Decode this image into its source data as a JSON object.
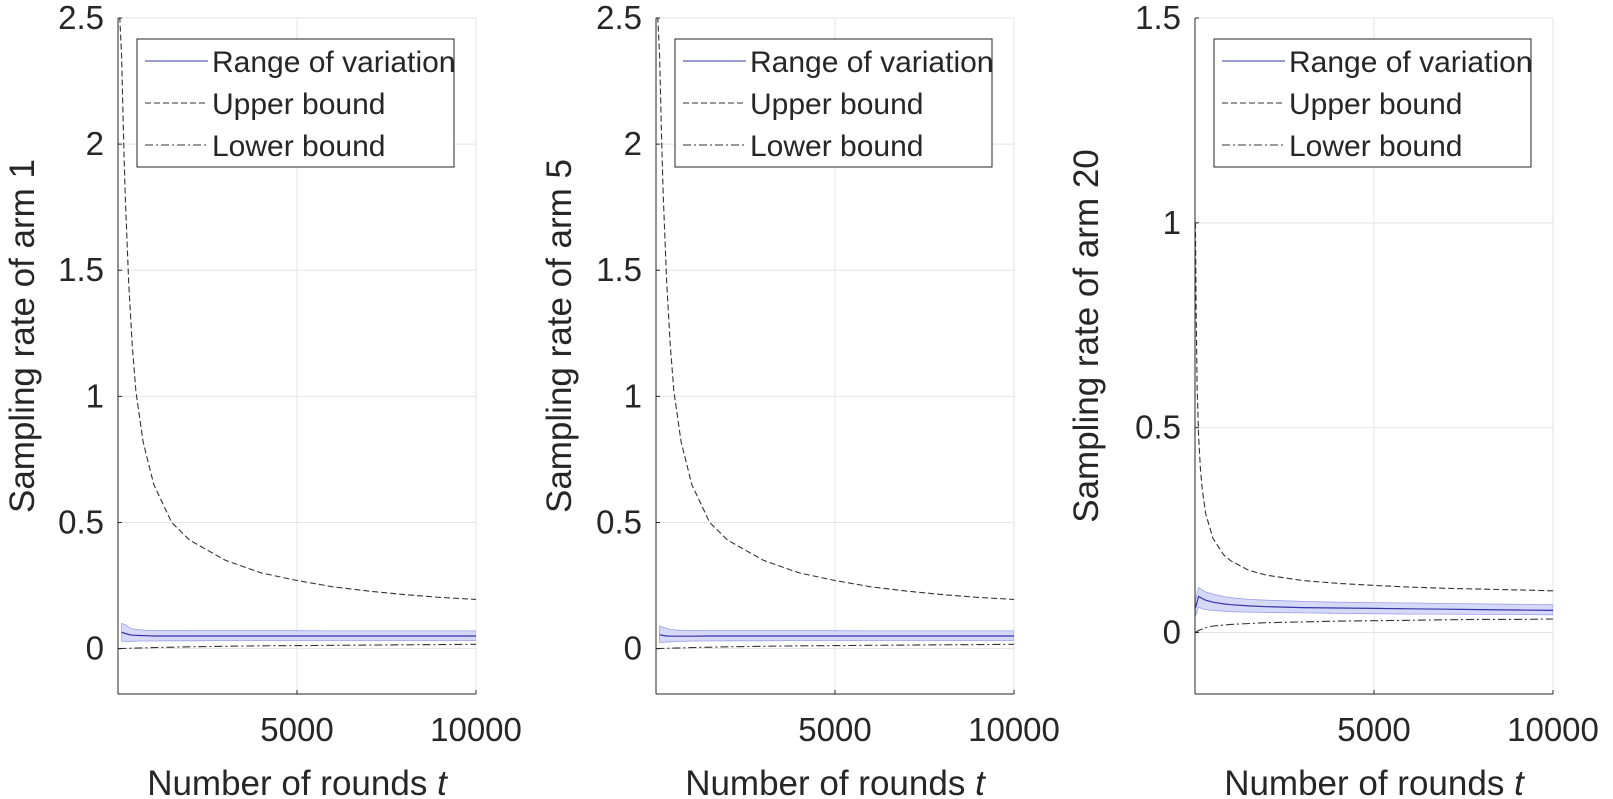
{
  "chart_data": [
    {
      "type": "line",
      "xlabel": "Number of rounds",
      "xlabel_var": "t",
      "ylabel": "Sampling rate of arm 1",
      "xlim": [
        0,
        10000
      ],
      "ylim": [
        -0.18,
        2.5
      ],
      "xticks": [
        5000,
        10000
      ],
      "yticks": [
        0,
        0.5,
        1,
        1.5,
        2,
        2.5
      ],
      "grid": true,
      "legend_position": "top-right",
      "series": [
        {
          "name": "Range of variation",
          "style": "solid",
          "color": "#3333aa",
          "fill": "#d6d8f7",
          "x": [
            100,
            200,
            300,
            400,
            600,
            800,
            1000,
            1500,
            2000,
            3000,
            4000,
            5000,
            6000,
            7000,
            8000,
            9000,
            10000
          ],
          "center": [
            0.065,
            0.06,
            0.056,
            0.053,
            0.052,
            0.051,
            0.05,
            0.05,
            0.05,
            0.05,
            0.05,
            0.05,
            0.05,
            0.05,
            0.05,
            0.05,
            0.05
          ],
          "upper": [
            0.1,
            0.095,
            0.085,
            0.078,
            0.075,
            0.072,
            0.072,
            0.072,
            0.071,
            0.071,
            0.071,
            0.071,
            0.07,
            0.07,
            0.07,
            0.07,
            0.07
          ],
          "lower": [
            0.03,
            0.028,
            0.028,
            0.029,
            0.03,
            0.03,
            0.03,
            0.031,
            0.031,
            0.032,
            0.032,
            0.032,
            0.032,
            0.032,
            0.032,
            0.032,
            0.032
          ]
        },
        {
          "name": "Upper bound",
          "style": "dashed",
          "color": "#333333",
          "x": [
            10,
            50,
            100,
            150,
            200,
            300,
            400,
            500,
            700,
            1000,
            1500,
            2000,
            3000,
            4000,
            5000,
            6000,
            7000,
            8000,
            9000,
            10000
          ],
          "values": [
            2.5,
            2.5,
            2.35,
            2.05,
            1.8,
            1.45,
            1.2,
            1.02,
            0.82,
            0.65,
            0.5,
            0.43,
            0.35,
            0.3,
            0.27,
            0.245,
            0.228,
            0.214,
            0.203,
            0.195
          ]
        },
        {
          "name": "Lower bound",
          "style": "dashdot",
          "color": "#333333",
          "x": [
            10,
            500,
            1000,
            2000,
            3000,
            4000,
            5000,
            6000,
            7000,
            8000,
            9000,
            10000
          ],
          "values": [
            0.0,
            0.002,
            0.004,
            0.007,
            0.009,
            0.011,
            0.012,
            0.013,
            0.014,
            0.015,
            0.016,
            0.017
          ]
        }
      ]
    },
    {
      "type": "line",
      "xlabel": "Number of rounds",
      "xlabel_var": "t",
      "ylabel": "Sampling rate of arm 5",
      "xlim": [
        0,
        10000
      ],
      "ylim": [
        -0.18,
        2.5
      ],
      "xticks": [
        5000,
        10000
      ],
      "yticks": [
        0,
        0.5,
        1,
        1.5,
        2,
        2.5
      ],
      "grid": true,
      "legend_position": "top-right",
      "series": [
        {
          "name": "Range of variation",
          "style": "solid",
          "color": "#3333aa",
          "fill": "#d6d8f7",
          "x": [
            100,
            200,
            300,
            400,
            600,
            800,
            1000,
            1500,
            2000,
            3000,
            4000,
            5000,
            6000,
            7000,
            8000,
            9000,
            10000
          ],
          "center": [
            0.055,
            0.052,
            0.05,
            0.049,
            0.049,
            0.049,
            0.049,
            0.05,
            0.05,
            0.05,
            0.05,
            0.05,
            0.05,
            0.05,
            0.05,
            0.05,
            0.05
          ],
          "upper": [
            0.09,
            0.085,
            0.08,
            0.076,
            0.073,
            0.072,
            0.072,
            0.071,
            0.071,
            0.071,
            0.071,
            0.071,
            0.07,
            0.07,
            0.07,
            0.07,
            0.07
          ],
          "lower": [
            0.025,
            0.025,
            0.026,
            0.027,
            0.028,
            0.029,
            0.03,
            0.03,
            0.031,
            0.031,
            0.032,
            0.032,
            0.032,
            0.032,
            0.032,
            0.032,
            0.032
          ]
        },
        {
          "name": "Upper bound",
          "style": "dashed",
          "color": "#333333",
          "x": [
            10,
            50,
            100,
            150,
            200,
            300,
            400,
            500,
            700,
            1000,
            1500,
            2000,
            3000,
            4000,
            5000,
            6000,
            7000,
            8000,
            9000,
            10000
          ],
          "values": [
            2.5,
            2.5,
            2.35,
            2.05,
            1.8,
            1.45,
            1.2,
            1.02,
            0.82,
            0.65,
            0.5,
            0.43,
            0.35,
            0.3,
            0.27,
            0.245,
            0.228,
            0.214,
            0.203,
            0.195
          ]
        },
        {
          "name": "Lower bound",
          "style": "dashdot",
          "color": "#333333",
          "x": [
            10,
            500,
            1000,
            2000,
            3000,
            4000,
            5000,
            6000,
            7000,
            8000,
            9000,
            10000
          ],
          "values": [
            0.0,
            0.002,
            0.004,
            0.007,
            0.009,
            0.011,
            0.012,
            0.013,
            0.014,
            0.015,
            0.016,
            0.017
          ]
        }
      ]
    },
    {
      "type": "line",
      "xlabel": "Number of rounds",
      "xlabel_var": "t",
      "ylabel": "Sampling rate of arm 20",
      "xlim": [
        0,
        10000
      ],
      "ylim": [
        -0.15,
        1.5
      ],
      "xticks": [
        5000,
        10000
      ],
      "yticks": [
        0,
        0.5,
        1,
        1.5
      ],
      "grid": true,
      "legend_position": "top-right",
      "series": [
        {
          "name": "Range of variation",
          "style": "solid",
          "color": "#3333aa",
          "fill": "#d6d8f7",
          "x": [
            10,
            100,
            200,
            300,
            500,
            800,
            1000,
            1500,
            2000,
            3000,
            4000,
            5000,
            6000,
            7000,
            8000,
            9000,
            10000
          ],
          "center": [
            0.06,
            0.088,
            0.083,
            0.079,
            0.074,
            0.07,
            0.068,
            0.065,
            0.063,
            0.061,
            0.06,
            0.059,
            0.058,
            0.057,
            0.056,
            0.055,
            0.054
          ],
          "upper": [
            0.08,
            0.11,
            0.104,
            0.099,
            0.094,
            0.088,
            0.085,
            0.081,
            0.079,
            0.076,
            0.074,
            0.073,
            0.072,
            0.071,
            0.07,
            0.069,
            0.068
          ],
          "lower": [
            0.04,
            0.062,
            0.058,
            0.056,
            0.054,
            0.052,
            0.051,
            0.05,
            0.049,
            0.048,
            0.047,
            0.046,
            0.045,
            0.045,
            0.044,
            0.044,
            0.043
          ]
        },
        {
          "name": "Upper bound",
          "style": "dashed",
          "color": "#333333",
          "x": [
            10,
            30,
            60,
            100,
            150,
            200,
            300,
            500,
            800,
            1000,
            1500,
            2000,
            3000,
            4000,
            5000,
            6000,
            7000,
            8000,
            9000,
            10000
          ],
          "values": [
            1.0,
            0.8,
            0.6,
            0.48,
            0.4,
            0.35,
            0.29,
            0.23,
            0.19,
            0.175,
            0.152,
            0.14,
            0.127,
            0.12,
            0.115,
            0.111,
            0.108,
            0.106,
            0.104,
            0.102
          ]
        },
        {
          "name": "Lower bound",
          "style": "dashdot",
          "color": "#333333",
          "x": [
            10,
            100,
            300,
            500,
            1000,
            2000,
            3000,
            4000,
            5000,
            6000,
            7000,
            8000,
            9000,
            10000
          ],
          "values": [
            0.0,
            0.005,
            0.012,
            0.016,
            0.02,
            0.024,
            0.026,
            0.028,
            0.029,
            0.03,
            0.031,
            0.032,
            0.032,
            0.033
          ]
        }
      ]
    }
  ]
}
